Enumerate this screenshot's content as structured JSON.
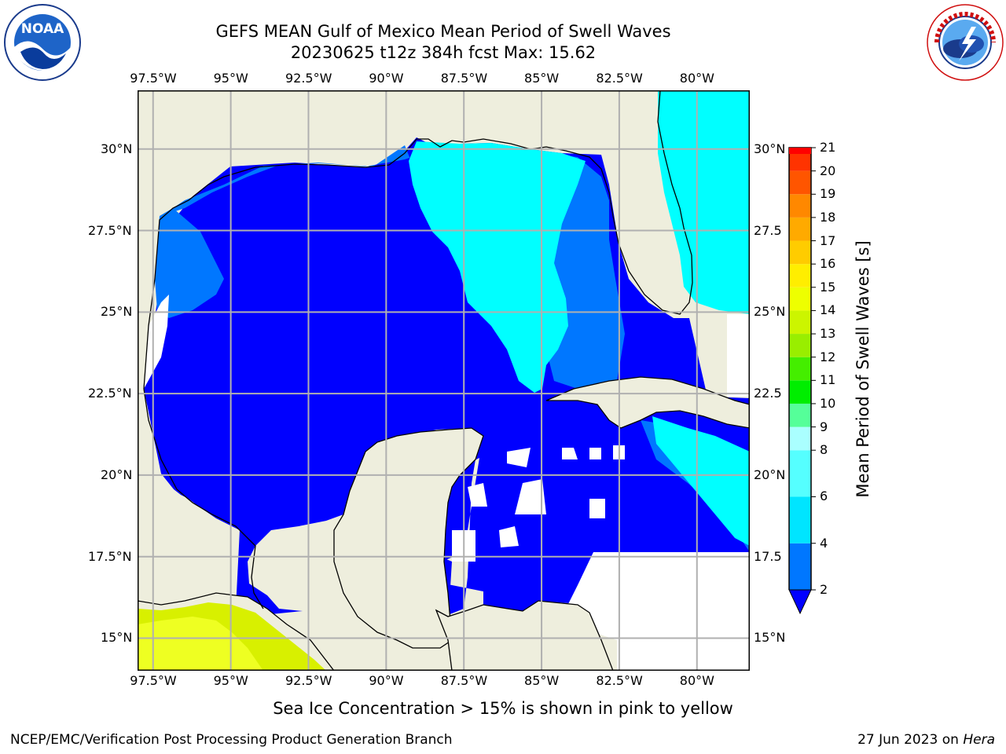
{
  "title": {
    "line1": "GEFS MEAN Gulf of Mexico Mean Period of Swell Waves",
    "line2": "20230625 t12z 384h fcst   Max: 15.62"
  },
  "logos": {
    "left": {
      "name": "NOAA",
      "text": "NOAA",
      "ring_text": "NATIONAL OCEANIC AND ATMOSPHERIC ADMINISTRATION · U.S. DEPARTMENT OF COMMERCE"
    },
    "right": {
      "name": "National Weather Service",
      "ring_text": "NATIONAL WEATHER SERVICE"
    }
  },
  "map": {
    "region": "Gulf of Mexico",
    "x_ticks": [
      "97.5°W",
      "95°W",
      "92.5°W",
      "90°W",
      "87.5°W",
      "85°W",
      "82.5°W",
      "80°W"
    ],
    "y_ticks_left": [
      "30°N",
      "27.5°N",
      "25°N",
      "22.5°N",
      "20°N",
      "17.5°N",
      "15°N"
    ],
    "y_ticks_right": [
      "30°N",
      "27.5",
      "25°N",
      "22.5",
      "20°N",
      "17.5",
      "15°N"
    ],
    "lon_range": [
      -98,
      -78.3
    ],
    "lat_range": [
      14,
      31.8
    ],
    "grid": true,
    "colors": {
      "land": "#eeeedd",
      "below_2": "#0000ff",
      "band_2_4": "#0077ff",
      "band_4_6": "#00ffff",
      "ice": "#d8f000",
      "grid": "#b0b0b0",
      "coast": "#000000"
    }
  },
  "colorbar": {
    "label": "Mean Period of Swell Waves [s]",
    "ticks": [
      "2",
      "4",
      "6",
      "8",
      "9",
      "10",
      "11",
      "12",
      "13",
      "14",
      "15",
      "16",
      "17",
      "18",
      "19",
      "20",
      "21"
    ],
    "bins": [
      {
        "from": 2,
        "to": 4,
        "color": "#0077ff"
      },
      {
        "from": 4,
        "to": 6,
        "color": "#00e5ff"
      },
      {
        "from": 6,
        "to": 8,
        "color": "#55ffff"
      },
      {
        "from": 8,
        "to": 9,
        "color": "#aaffff"
      },
      {
        "from": 9,
        "to": 10,
        "color": "#55ff99"
      },
      {
        "from": 10,
        "to": 11,
        "color": "#00ee00"
      },
      {
        "from": 11,
        "to": 12,
        "color": "#44ee00"
      },
      {
        "from": 12,
        "to": 13,
        "color": "#99ee00"
      },
      {
        "from": 13,
        "to": 14,
        "color": "#ccf500"
      },
      {
        "from": 14,
        "to": 15,
        "color": "#eeff00"
      },
      {
        "from": 15,
        "to": 16,
        "color": "#ffee00"
      },
      {
        "from": 16,
        "to": 17,
        "color": "#ffcc00"
      },
      {
        "from": 17,
        "to": 18,
        "color": "#ffaa00"
      },
      {
        "from": 18,
        "to": 19,
        "color": "#ff8800"
      },
      {
        "from": 19,
        "to": 20,
        "color": "#ff5500"
      },
      {
        "from": 20,
        "to": 21,
        "color": "#ff3300"
      }
    ],
    "extend_below_color": "#0000ff",
    "top_color": "#ff0000"
  },
  "caption": "Sea Ice Concentration > 15% is shown in pink to yellow",
  "footer": {
    "left": "NCEP/EMC/Verification Post Processing Product Generation Branch",
    "right_date": "27 Jun 2023 on ",
    "right_host": "Hera"
  }
}
